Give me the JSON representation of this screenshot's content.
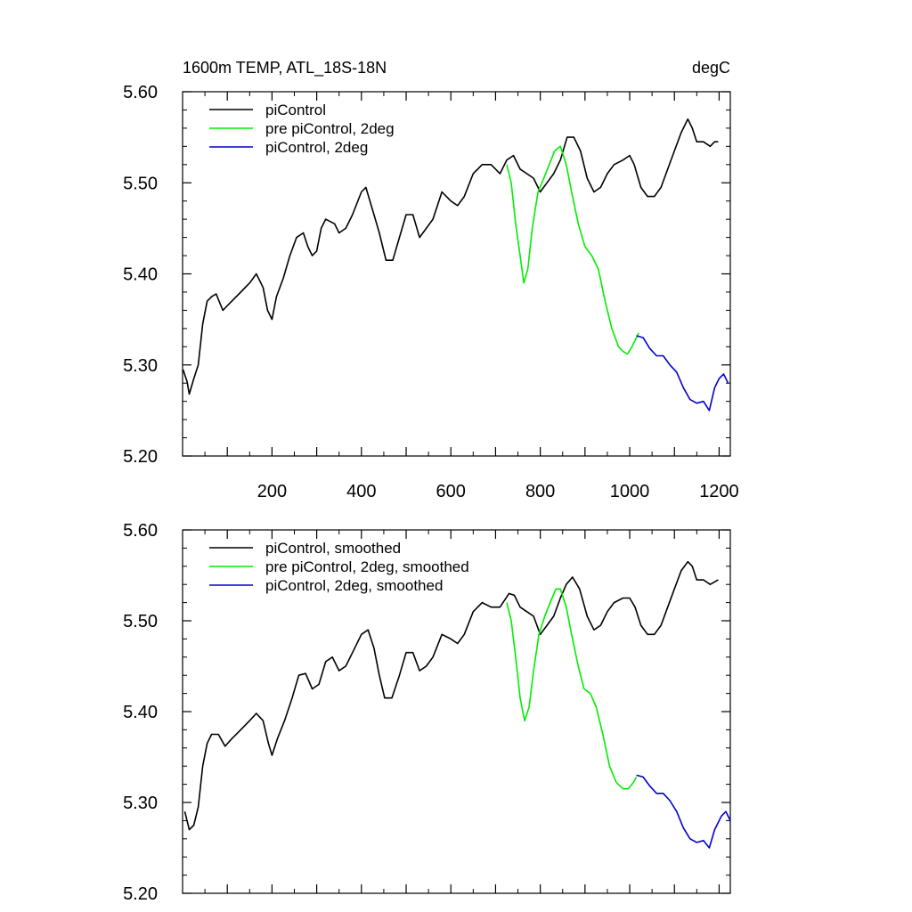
{
  "chart_data": [
    {
      "type": "line",
      "title": "1600m TEMP, ATL_18S-18N",
      "units": "degC",
      "xlabel": "",
      "ylabel": "",
      "xlim": [
        0,
        1225
      ],
      "ylim": [
        5.2,
        5.6
      ],
      "xticks": [
        200,
        400,
        600,
        800,
        1000,
        1200
      ],
      "yticks": [
        5.2,
        5.3,
        5.4,
        5.5,
        5.6
      ],
      "ytick_labels": [
        "5.20",
        "5.30",
        "5.40",
        "5.50",
        "5.60"
      ],
      "legend": "top-left",
      "series": [
        {
          "name": "piControl",
          "color": "#000000",
          "points": [
            [
              1,
              5.295
            ],
            [
              10,
              5.282
            ],
            [
              15,
              5.268
            ],
            [
              25,
              5.285
            ],
            [
              35,
              5.3
            ],
            [
              45,
              5.345
            ],
            [
              55,
              5.37
            ],
            [
              65,
              5.375
            ],
            [
              75,
              5.378
            ],
            [
              90,
              5.36
            ],
            [
              110,
              5.37
            ],
            [
              130,
              5.38
            ],
            [
              150,
              5.39
            ],
            [
              165,
              5.4
            ],
            [
              180,
              5.385
            ],
            [
              190,
              5.36
            ],
            [
              200,
              5.35
            ],
            [
              210,
              5.375
            ],
            [
              225,
              5.395
            ],
            [
              240,
              5.42
            ],
            [
              255,
              5.44
            ],
            [
              270,
              5.445
            ],
            [
              280,
              5.43
            ],
            [
              290,
              5.42
            ],
            [
              300,
              5.425
            ],
            [
              310,
              5.45
            ],
            [
              320,
              5.46
            ],
            [
              340,
              5.455
            ],
            [
              350,
              5.445
            ],
            [
              365,
              5.45
            ],
            [
              380,
              5.465
            ],
            [
              400,
              5.49
            ],
            [
              410,
              5.495
            ],
            [
              425,
              5.47
            ],
            [
              440,
              5.445
            ],
            [
              455,
              5.415
            ],
            [
              470,
              5.415
            ],
            [
              485,
              5.44
            ],
            [
              500,
              5.465
            ],
            [
              515,
              5.465
            ],
            [
              530,
              5.44
            ],
            [
              545,
              5.45
            ],
            [
              560,
              5.46
            ],
            [
              580,
              5.49
            ],
            [
              600,
              5.48
            ],
            [
              615,
              5.475
            ],
            [
              630,
              5.485
            ],
            [
              650,
              5.51
            ],
            [
              670,
              5.52
            ],
            [
              690,
              5.52
            ],
            [
              710,
              5.51
            ],
            [
              725,
              5.525
            ],
            [
              740,
              5.53
            ],
            [
              755,
              5.515
            ],
            [
              770,
              5.51
            ],
            [
              785,
              5.505
            ],
            [
              800,
              5.49
            ],
            [
              815,
              5.5
            ],
            [
              830,
              5.51
            ],
            [
              845,
              5.525
            ],
            [
              860,
              5.55
            ],
            [
              875,
              5.55
            ],
            [
              890,
              5.535
            ],
            [
              905,
              5.505
            ],
            [
              920,
              5.49
            ],
            [
              935,
              5.495
            ],
            [
              950,
              5.51
            ],
            [
              965,
              5.52
            ],
            [
              985,
              5.525
            ],
            [
              1000,
              5.53
            ],
            [
              1010,
              5.52
            ],
            [
              1025,
              5.495
            ],
            [
              1040,
              5.485
            ],
            [
              1055,
              5.485
            ],
            [
              1070,
              5.495
            ],
            [
              1085,
              5.515
            ],
            [
              1100,
              5.535
            ],
            [
              1115,
              5.555
            ],
            [
              1130,
              5.57
            ],
            [
              1140,
              5.56
            ],
            [
              1150,
              5.545
            ],
            [
              1165,
              5.545
            ],
            [
              1180,
              5.54
            ],
            [
              1190,
              5.545
            ],
            [
              1198,
              5.545
            ]
          ]
        },
        {
          "name": "pre piControl, 2deg",
          "color": "#00ee00",
          "points": [
            [
              725,
              5.52
            ],
            [
              735,
              5.5
            ],
            [
              745,
              5.455
            ],
            [
              755,
              5.42
            ],
            [
              763,
              5.39
            ],
            [
              772,
              5.405
            ],
            [
              782,
              5.45
            ],
            [
              795,
              5.49
            ],
            [
              808,
              5.505
            ],
            [
              820,
              5.52
            ],
            [
              832,
              5.535
            ],
            [
              845,
              5.54
            ],
            [
              858,
              5.52
            ],
            [
              870,
              5.49
            ],
            [
              885,
              5.455
            ],
            [
              900,
              5.43
            ],
            [
              915,
              5.42
            ],
            [
              930,
              5.405
            ],
            [
              945,
              5.37
            ],
            [
              960,
              5.34
            ],
            [
              975,
              5.32
            ],
            [
              985,
              5.315
            ],
            [
              995,
              5.312
            ],
            [
              1005,
              5.32
            ],
            [
              1015,
              5.33
            ],
            [
              1020,
              5.335
            ]
          ]
        },
        {
          "name": "piControl, 2deg",
          "color": "#0000cc",
          "points": [
            [
              1015,
              5.332
            ],
            [
              1030,
              5.33
            ],
            [
              1045,
              5.318
            ],
            [
              1060,
              5.31
            ],
            [
              1075,
              5.31
            ],
            [
              1090,
              5.3
            ],
            [
              1105,
              5.292
            ],
            [
              1120,
              5.275
            ],
            [
              1135,
              5.262
            ],
            [
              1150,
              5.258
            ],
            [
              1165,
              5.26
            ],
            [
              1178,
              5.25
            ],
            [
              1190,
              5.275
            ],
            [
              1200,
              5.285
            ],
            [
              1210,
              5.29
            ],
            [
              1220,
              5.28
            ]
          ]
        }
      ]
    },
    {
      "type": "line",
      "title": "",
      "xlim": [
        0,
        1225
      ],
      "ylim": [
        5.2,
        5.6
      ],
      "xticks": [
        200,
        400,
        600,
        800,
        1000,
        1200
      ],
      "yticks": [
        5.2,
        5.3,
        5.4,
        5.5,
        5.6
      ],
      "ytick_labels": [
        "5.20",
        "5.30",
        "5.40",
        "5.50",
        "5.60"
      ],
      "legend": "top-left",
      "series": [
        {
          "name": "piControl, smoothed",
          "color": "#000000",
          "points": [
            [
              5,
              5.29
            ],
            [
              15,
              5.27
            ],
            [
              25,
              5.275
            ],
            [
              35,
              5.295
            ],
            [
              45,
              5.34
            ],
            [
              55,
              5.365
            ],
            [
              65,
              5.375
            ],
            [
              80,
              5.375
            ],
            [
              95,
              5.362
            ],
            [
              110,
              5.37
            ],
            [
              130,
              5.38
            ],
            [
              150,
              5.39
            ],
            [
              165,
              5.398
            ],
            [
              180,
              5.39
            ],
            [
              192,
              5.365
            ],
            [
              200,
              5.352
            ],
            [
              212,
              5.37
            ],
            [
              228,
              5.39
            ],
            [
              245,
              5.415
            ],
            [
              260,
              5.44
            ],
            [
              275,
              5.442
            ],
            [
              290,
              5.425
            ],
            [
              305,
              5.43
            ],
            [
              320,
              5.455
            ],
            [
              335,
              5.46
            ],
            [
              350,
              5.445
            ],
            [
              365,
              5.45
            ],
            [
              380,
              5.465
            ],
            [
              400,
              5.485
            ],
            [
              415,
              5.49
            ],
            [
              428,
              5.47
            ],
            [
              440,
              5.44
            ],
            [
              452,
              5.415
            ],
            [
              468,
              5.415
            ],
            [
              485,
              5.44
            ],
            [
              500,
              5.465
            ],
            [
              515,
              5.465
            ],
            [
              530,
              5.445
            ],
            [
              545,
              5.45
            ],
            [
              560,
              5.46
            ],
            [
              580,
              5.485
            ],
            [
              600,
              5.48
            ],
            [
              615,
              5.475
            ],
            [
              630,
              5.485
            ],
            [
              650,
              5.51
            ],
            [
              670,
              5.52
            ],
            [
              690,
              5.515
            ],
            [
              710,
              5.515
            ],
            [
              730,
              5.53
            ],
            [
              742,
              5.528
            ],
            [
              755,
              5.515
            ],
            [
              770,
              5.51
            ],
            [
              785,
              5.505
            ],
            [
              800,
              5.485
            ],
            [
              815,
              5.495
            ],
            [
              830,
              5.505
            ],
            [
              845,
              5.525
            ],
            [
              858,
              5.54
            ],
            [
              872,
              5.548
            ],
            [
              888,
              5.535
            ],
            [
              905,
              5.505
            ],
            [
              920,
              5.49
            ],
            [
              935,
              5.495
            ],
            [
              950,
              5.51
            ],
            [
              965,
              5.52
            ],
            [
              985,
              5.525
            ],
            [
              1000,
              5.525
            ],
            [
              1012,
              5.515
            ],
            [
              1025,
              5.495
            ],
            [
              1040,
              5.485
            ],
            [
              1055,
              5.485
            ],
            [
              1070,
              5.495
            ],
            [
              1085,
              5.515
            ],
            [
              1100,
              5.535
            ],
            [
              1115,
              5.555
            ],
            [
              1130,
              5.565
            ],
            [
              1140,
              5.56
            ],
            [
              1150,
              5.545
            ],
            [
              1165,
              5.545
            ],
            [
              1180,
              5.54
            ],
            [
              1198,
              5.545
            ]
          ]
        },
        {
          "name": "pre piControl, 2deg, smoothed",
          "color": "#00ee00",
          "points": [
            [
              725,
              5.52
            ],
            [
              735,
              5.5
            ],
            [
              745,
              5.46
            ],
            [
              755,
              5.415
            ],
            [
              765,
              5.39
            ],
            [
              775,
              5.405
            ],
            [
              785,
              5.445
            ],
            [
              797,
              5.485
            ],
            [
              810,
              5.505
            ],
            [
              822,
              5.52
            ],
            [
              835,
              5.535
            ],
            [
              845,
              5.535
            ],
            [
              858,
              5.515
            ],
            [
              870,
              5.485
            ],
            [
              885,
              5.45
            ],
            [
              898,
              5.425
            ],
            [
              912,
              5.42
            ],
            [
              925,
              5.405
            ],
            [
              940,
              5.375
            ],
            [
              955,
              5.34
            ],
            [
              970,
              5.322
            ],
            [
              985,
              5.315
            ],
            [
              997,
              5.315
            ],
            [
              1008,
              5.322
            ],
            [
              1015,
              5.328
            ]
          ]
        },
        {
          "name": "piControl, 2deg, smoothed",
          "color": "#0000cc",
          "points": [
            [
              1015,
              5.33
            ],
            [
              1030,
              5.328
            ],
            [
              1045,
              5.318
            ],
            [
              1060,
              5.31
            ],
            [
              1075,
              5.31
            ],
            [
              1090,
              5.302
            ],
            [
              1105,
              5.29
            ],
            [
              1120,
              5.272
            ],
            [
              1135,
              5.26
            ],
            [
              1150,
              5.256
            ],
            [
              1165,
              5.258
            ],
            [
              1178,
              5.25
            ],
            [
              1190,
              5.27
            ],
            [
              1205,
              5.285
            ],
            [
              1215,
              5.29
            ],
            [
              1225,
              5.28
            ]
          ]
        }
      ]
    }
  ]
}
